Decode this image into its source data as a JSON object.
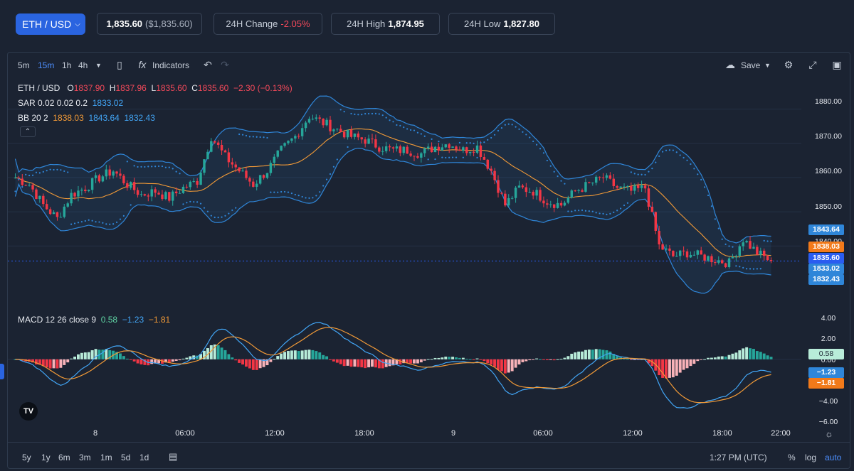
{
  "header": {
    "pair": "ETH / USD",
    "price": "1,835.60",
    "price_usd": "($1,835.60)",
    "change_label": "24H Change",
    "change_value": "-2.05%",
    "high_label": "24H High",
    "high_value": "1,874.95",
    "low_label": "24H Low",
    "low_value": "1,827.80"
  },
  "toolbar": {
    "intervals": [
      "5m",
      "15m",
      "1h",
      "4h"
    ],
    "active_interval": "15m",
    "indicators_label": "Indicators",
    "save_label": "Save"
  },
  "legend": {
    "symbol": "ETH / USD",
    "o_label": "O",
    "o_value": "1837.90",
    "h_label": "H",
    "h_value": "1837.96",
    "l_label": "L",
    "l_value": "1835.60",
    "c_label": "C",
    "c_value": "1835.60",
    "change": "−2.30 (−0.13%)",
    "sar_label": "SAR 0.02 0.02 0.2",
    "sar_value": "1833.02",
    "bb_label": "BB 20 2",
    "bb_mid": "1838.03",
    "bb_upper": "1843.64",
    "bb_lower": "1832.43",
    "macd_label": "MACD 12 26 close 9",
    "macd_hist": "0.58",
    "macd_line": "−1.23",
    "macd_signal": "−1.81"
  },
  "price_axis": [
    "1880.00",
    "1870.00",
    "1860.00",
    "1850.00",
    "1840.00"
  ],
  "price_labels": {
    "upper": "1843.64",
    "mid": "1838.03",
    "last": "1835.60",
    "sar": "1833.02",
    "lower": "1832.43"
  },
  "macd_axis": [
    "4.00",
    "2.00",
    "0.00",
    "−2.00",
    "−4.00",
    "−6.00"
  ],
  "macd_labels": {
    "hist": "0.58",
    "line": "−1.23",
    "signal": "−1.81"
  },
  "time_axis": [
    "8",
    "06:00",
    "12:00",
    "18:00",
    "9",
    "06:00",
    "12:00",
    "18:00",
    "22:00"
  ],
  "bottom": {
    "ranges": [
      "5y",
      "1y",
      "6m",
      "3m",
      "1m",
      "5d",
      "1d"
    ],
    "time": "1:27 PM (UTC)",
    "pct": "%",
    "log": "log",
    "auto": "auto"
  },
  "colors": {
    "up": "#26a69a",
    "down": "#f23645",
    "bb": "#2f86d9",
    "sma": "#f29a37",
    "accent": "#2a64e0"
  },
  "chart_data": {
    "type": "candlestick",
    "price_range": [
      1827.8,
      1880
    ],
    "macd_range": [
      -6,
      4
    ],
    "close_series": [
      1860,
      1858,
      1852,
      1848,
      1855,
      1857,
      1860,
      1862,
      1858,
      1855,
      1856,
      1854,
      1857,
      1859,
      1872,
      1866,
      1862,
      1858,
      1862,
      1868,
      1872,
      1878,
      1876,
      1874,
      1872,
      1871,
      1869,
      1868,
      1868,
      1867,
      1869,
      1870,
      1868,
      1869,
      1862,
      1852,
      1857,
      1856,
      1853,
      1852,
      1856,
      1858,
      1860,
      1857,
      1856,
      1857,
      1840,
      1837,
      1838,
      1837,
      1836,
      1835,
      1842,
      1838,
      1835.6
    ]
  }
}
